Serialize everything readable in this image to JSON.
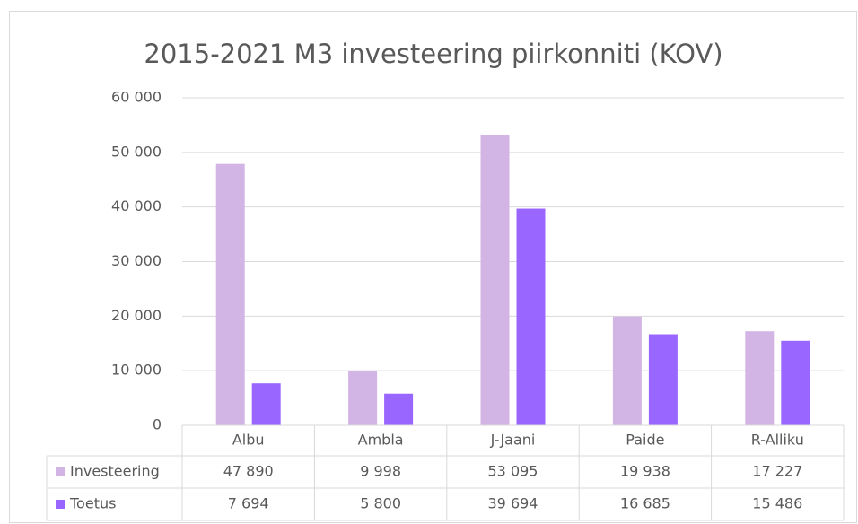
{
  "chart_data": {
    "type": "bar",
    "title": "2015-2021 M3 investeering piirkonniti (KOV)",
    "categories": [
      "Albu",
      "Ambla",
      "J-Jaani",
      "Paide",
      "R-Alliku"
    ],
    "series": [
      {
        "name": "Investeering",
        "color": "#d3b5e5",
        "values": [
          47890,
          9998,
          53095,
          19938,
          17227
        ],
        "value_labels": [
          "47 890",
          "9 998",
          "53 095",
          "19 938",
          "17 227"
        ]
      },
      {
        "name": "Toetus",
        "color": "#9966ff",
        "values": [
          7694,
          5800,
          39694,
          16685,
          15486
        ],
        "value_labels": [
          "7 694",
          "5 800",
          "39 694",
          "16 685",
          "15 486"
        ]
      }
    ],
    "ylim": [
      0,
      60000
    ],
    "yticks": [
      0,
      {
        "value": 10000,
        "label": "10 000"
      },
      {
        "value": 20000,
        "label": "20 000"
      },
      {
        "value": 30000,
        "label": "30 000"
      },
      {
        "value": 40000,
        "label": "40 000"
      },
      {
        "value": 50000,
        "label": "50 000"
      },
      {
        "value": 60000,
        "label": "60 000"
      }
    ],
    "grid": true,
    "data_table": true
  }
}
